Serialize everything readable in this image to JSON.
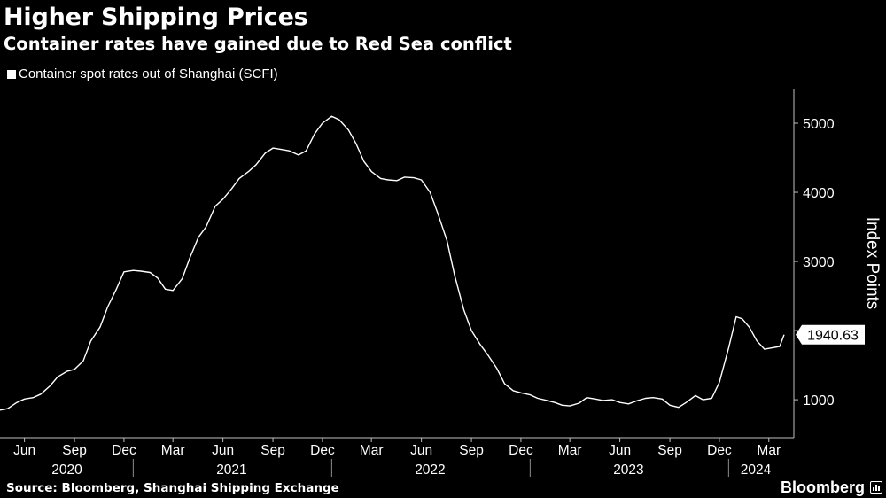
{
  "header": {
    "title": "Higher Shipping Prices",
    "subtitle": "Container rates have gained due to Red Sea conflict"
  },
  "footer": {
    "source": "Source: Bloomberg, Shanghai Shipping Exchange",
    "brand": "Bloomberg"
  },
  "colors": {
    "background": "#000000",
    "line": "#ffffff",
    "text": "#ffffff"
  },
  "chart_data": {
    "type": "line",
    "title": "Higher Shipping Prices",
    "subtitle": "Container rates have gained due to Red Sea conflict",
    "ylabel": "Index Points",
    "xlabel": "",
    "ylim": [
      450,
      5500
    ],
    "y_ticks": [
      1000,
      2000,
      3000,
      4000,
      5000
    ],
    "y_tick_labels": [
      "1000",
      "",
      "3000",
      "4000",
      "5000"
    ],
    "y_axis_position": "right",
    "grid": false,
    "legend_position": "top-left",
    "x_range": [
      "2020-05-01",
      "2024-04-30"
    ],
    "x_ticks": [
      {
        "date": "2020-06-15",
        "label": "Jun"
      },
      {
        "date": "2020-09-15",
        "label": "Sep"
      },
      {
        "date": "2020-12-15",
        "label": "Dec"
      },
      {
        "date": "2021-03-15",
        "label": "Mar"
      },
      {
        "date": "2021-06-15",
        "label": "Jun"
      },
      {
        "date": "2021-09-15",
        "label": "Sep"
      },
      {
        "date": "2021-12-15",
        "label": "Dec"
      },
      {
        "date": "2022-03-15",
        "label": "Mar"
      },
      {
        "date": "2022-06-15",
        "label": "Jun"
      },
      {
        "date": "2022-09-15",
        "label": "Sep"
      },
      {
        "date": "2022-12-15",
        "label": "Dec"
      },
      {
        "date": "2023-03-15",
        "label": "Mar"
      },
      {
        "date": "2023-06-15",
        "label": "Jun"
      },
      {
        "date": "2023-09-15",
        "label": "Sep"
      },
      {
        "date": "2023-12-15",
        "label": "Dec"
      },
      {
        "date": "2024-03-15",
        "label": "Mar"
      }
    ],
    "year_labels": [
      {
        "date": "2020-09-01",
        "label": "2020"
      },
      {
        "date": "2021-07-01",
        "label": "2021"
      },
      {
        "date": "2022-07-01",
        "label": "2022"
      },
      {
        "date": "2023-07-01",
        "label": "2023"
      },
      {
        "date": "2024-02-20",
        "label": "2024"
      }
    ],
    "year_dividers": [
      "2021-01-01",
      "2022-01-01",
      "2023-01-01",
      "2024-01-01"
    ],
    "series": [
      {
        "name": "Container spot rates out of Shanghai (SCFI)",
        "last_value_label": "1940.63",
        "points": [
          {
            "x": "2020-05-01",
            "y": 850
          },
          {
            "x": "2020-05-15",
            "y": 870
          },
          {
            "x": "2020-06-01",
            "y": 960
          },
          {
            "x": "2020-06-15",
            "y": 1010
          },
          {
            "x": "2020-07-01",
            "y": 1030
          },
          {
            "x": "2020-07-15",
            "y": 1080
          },
          {
            "x": "2020-08-01",
            "y": 1200
          },
          {
            "x": "2020-08-15",
            "y": 1330
          },
          {
            "x": "2020-09-01",
            "y": 1410
          },
          {
            "x": "2020-09-15",
            "y": 1440
          },
          {
            "x": "2020-10-01",
            "y": 1560
          },
          {
            "x": "2020-10-15",
            "y": 1850
          },
          {
            "x": "2020-11-01",
            "y": 2050
          },
          {
            "x": "2020-11-15",
            "y": 2340
          },
          {
            "x": "2020-12-01",
            "y": 2600
          },
          {
            "x": "2020-12-15",
            "y": 2850
          },
          {
            "x": "2021-01-01",
            "y": 2870
          },
          {
            "x": "2021-01-15",
            "y": 2860
          },
          {
            "x": "2021-02-01",
            "y": 2840
          },
          {
            "x": "2021-02-15",
            "y": 2760
          },
          {
            "x": "2021-03-01",
            "y": 2600
          },
          {
            "x": "2021-03-15",
            "y": 2580
          },
          {
            "x": "2021-04-01",
            "y": 2750
          },
          {
            "x": "2021-04-15",
            "y": 3050
          },
          {
            "x": "2021-05-01",
            "y": 3350
          },
          {
            "x": "2021-05-15",
            "y": 3500
          },
          {
            "x": "2021-06-01",
            "y": 3800
          },
          {
            "x": "2021-06-15",
            "y": 3900
          },
          {
            "x": "2021-07-01",
            "y": 4050
          },
          {
            "x": "2021-07-15",
            "y": 4200
          },
          {
            "x": "2021-08-01",
            "y": 4300
          },
          {
            "x": "2021-08-15",
            "y": 4400
          },
          {
            "x": "2021-09-01",
            "y": 4570
          },
          {
            "x": "2021-09-15",
            "y": 4640
          },
          {
            "x": "2021-10-01",
            "y": 4620
          },
          {
            "x": "2021-10-15",
            "y": 4600
          },
          {
            "x": "2021-11-01",
            "y": 4540
          },
          {
            "x": "2021-11-15",
            "y": 4600
          },
          {
            "x": "2021-12-01",
            "y": 4850
          },
          {
            "x": "2021-12-15",
            "y": 5000
          },
          {
            "x": "2022-01-01",
            "y": 5100
          },
          {
            "x": "2022-01-15",
            "y": 5050
          },
          {
            "x": "2022-02-01",
            "y": 4900
          },
          {
            "x": "2022-02-15",
            "y": 4700
          },
          {
            "x": "2022-03-01",
            "y": 4450
          },
          {
            "x": "2022-03-15",
            "y": 4300
          },
          {
            "x": "2022-04-01",
            "y": 4200
          },
          {
            "x": "2022-04-15",
            "y": 4180
          },
          {
            "x": "2022-05-01",
            "y": 4170
          },
          {
            "x": "2022-05-15",
            "y": 4220
          },
          {
            "x": "2022-06-01",
            "y": 4210
          },
          {
            "x": "2022-06-15",
            "y": 4180
          },
          {
            "x": "2022-07-01",
            "y": 4000
          },
          {
            "x": "2022-07-15",
            "y": 3700
          },
          {
            "x": "2022-08-01",
            "y": 3300
          },
          {
            "x": "2022-08-15",
            "y": 2800
          },
          {
            "x": "2022-09-01",
            "y": 2300
          },
          {
            "x": "2022-09-15",
            "y": 2000
          },
          {
            "x": "2022-10-01",
            "y": 1800
          },
          {
            "x": "2022-10-15",
            "y": 1650
          },
          {
            "x": "2022-11-01",
            "y": 1450
          },
          {
            "x": "2022-11-15",
            "y": 1230
          },
          {
            "x": "2022-12-01",
            "y": 1130
          },
          {
            "x": "2022-12-15",
            "y": 1100
          },
          {
            "x": "2023-01-01",
            "y": 1070
          },
          {
            "x": "2023-01-15",
            "y": 1020
          },
          {
            "x": "2023-02-01",
            "y": 990
          },
          {
            "x": "2023-02-15",
            "y": 960
          },
          {
            "x": "2023-03-01",
            "y": 920
          },
          {
            "x": "2023-03-15",
            "y": 910
          },
          {
            "x": "2023-04-01",
            "y": 950
          },
          {
            "x": "2023-04-15",
            "y": 1030
          },
          {
            "x": "2023-05-01",
            "y": 1010
          },
          {
            "x": "2023-05-15",
            "y": 990
          },
          {
            "x": "2023-06-01",
            "y": 1000
          },
          {
            "x": "2023-06-15",
            "y": 960
          },
          {
            "x": "2023-07-01",
            "y": 940
          },
          {
            "x": "2023-07-15",
            "y": 980
          },
          {
            "x": "2023-08-01",
            "y": 1020
          },
          {
            "x": "2023-08-15",
            "y": 1030
          },
          {
            "x": "2023-09-01",
            "y": 1010
          },
          {
            "x": "2023-09-15",
            "y": 920
          },
          {
            "x": "2023-10-01",
            "y": 890
          },
          {
            "x": "2023-10-15",
            "y": 960
          },
          {
            "x": "2023-11-01",
            "y": 1060
          },
          {
            "x": "2023-11-15",
            "y": 1000
          },
          {
            "x": "2023-12-01",
            "y": 1020
          },
          {
            "x": "2023-12-15",
            "y": 1250
          },
          {
            "x": "2024-01-01",
            "y": 1750
          },
          {
            "x": "2024-01-15",
            "y": 2200
          },
          {
            "x": "2024-01-26",
            "y": 2170
          },
          {
            "x": "2024-02-08",
            "y": 2050
          },
          {
            "x": "2024-02-22",
            "y": 1850
          },
          {
            "x": "2024-03-07",
            "y": 1730
          },
          {
            "x": "2024-03-21",
            "y": 1750
          },
          {
            "x": "2024-04-04",
            "y": 1770
          },
          {
            "x": "2024-04-12",
            "y": 1940.63
          }
        ]
      }
    ]
  }
}
